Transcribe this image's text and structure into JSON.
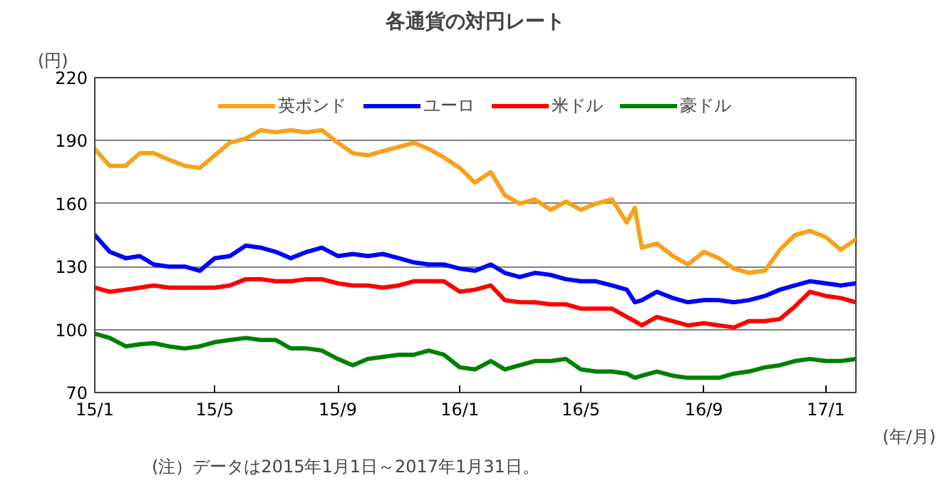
{
  "chart_data": {
    "type": "line",
    "title": "各通貨の対円レート",
    "ylabel": "(円)",
    "xlabel": "(年/月)",
    "annotations": [
      "(注）データは2015年1月1日～2017年1月31日。"
    ],
    "x": [
      "2015-01-01",
      "2015-01-16",
      "2015-02-01",
      "2015-02-15",
      "2015-03-01",
      "2015-03-16",
      "2015-04-01",
      "2015-04-16",
      "2015-05-01",
      "2015-05-16",
      "2015-06-01",
      "2015-06-16",
      "2015-07-01",
      "2015-07-16",
      "2015-08-01",
      "2015-08-16",
      "2015-09-01",
      "2015-09-16",
      "2015-10-01",
      "2015-10-16",
      "2015-11-01",
      "2015-11-16",
      "2015-12-01",
      "2015-12-16",
      "2016-01-01",
      "2016-01-16",
      "2016-02-01",
      "2016-02-15",
      "2016-03-01",
      "2016-03-16",
      "2016-04-01",
      "2016-04-16",
      "2016-05-01",
      "2016-05-16",
      "2016-06-01",
      "2016-06-16",
      "2016-06-24",
      "2016-07-01",
      "2016-07-16",
      "2016-08-01",
      "2016-08-16",
      "2016-09-01",
      "2016-09-16",
      "2016-10-01",
      "2016-10-16",
      "2016-11-01",
      "2016-11-16",
      "2016-12-01",
      "2016-12-16",
      "2017-01-01",
      "2017-01-16",
      "2017-01-31"
    ],
    "series": [
      {
        "name": "英ポンド",
        "color": "#f7a21b",
        "values": [
          186,
          178,
          178,
          184,
          184,
          181,
          178,
          177,
          183,
          189,
          191,
          195,
          194,
          195,
          194,
          195,
          189,
          184,
          183,
          185,
          187,
          189,
          186,
          182,
          177,
          170,
          175,
          164,
          160,
          162,
          157,
          161,
          157,
          160,
          162,
          151,
          158,
          139,
          141,
          135,
          131,
          137,
          134,
          129,
          127,
          128,
          138,
          145,
          147,
          144,
          138,
          143
        ]
      },
      {
        "name": "ユーロ",
        "color": "#0000ff",
        "values": [
          145,
          137,
          134,
          135,
          131,
          130,
          130,
          128,
          134,
          135,
          140,
          139,
          137,
          134,
          137,
          139,
          135,
          136,
          135,
          136,
          134,
          132,
          131,
          131,
          129,
          128,
          131,
          127,
          125,
          127,
          126,
          124,
          123,
          123,
          121,
          119,
          113,
          114,
          118,
          115,
          113,
          114,
          114,
          113,
          114,
          116,
          119,
          121,
          123,
          122,
          121,
          122
        ]
      },
      {
        "name": "米ドル",
        "color": "#ff0000",
        "values": [
          120,
          118,
          119,
          120,
          121,
          120,
          120,
          120,
          120,
          121,
          124,
          124,
          123,
          123,
          124,
          124,
          122,
          121,
          121,
          120,
          121,
          123,
          123,
          123,
          118,
          119,
          121,
          114,
          113,
          113,
          112,
          112,
          110,
          110,
          110,
          106,
          104,
          102,
          106,
          104,
          102,
          103,
          102,
          101,
          104,
          104,
          105,
          111,
          118,
          116,
          115,
          113
        ]
      },
      {
        "name": "豪ドル",
        "color": "#008000",
        "values": [
          98,
          96,
          92,
          93,
          93.5,
          92,
          91,
          92,
          94,
          95,
          96,
          95,
          95,
          91,
          91,
          90,
          86,
          83,
          86,
          87,
          88,
          88,
          90,
          88,
          82,
          81,
          85,
          81,
          83,
          85,
          85,
          86,
          81,
          80,
          80,
          79,
          77,
          78,
          80,
          78,
          77,
          77,
          77,
          79,
          80,
          82,
          83,
          85,
          86,
          85,
          85,
          86
        ]
      }
    ],
    "xlim": [
      "2015-01-01",
      "2017-01-31"
    ],
    "xticks": [
      {
        "value": "2015-01-01",
        "label": "15/1"
      },
      {
        "value": "2015-05-01",
        "label": "15/5"
      },
      {
        "value": "2015-09-01",
        "label": "15/9"
      },
      {
        "value": "2016-01-01",
        "label": "16/1"
      },
      {
        "value": "2016-05-01",
        "label": "16/5"
      },
      {
        "value": "2016-09-01",
        "label": "16/9"
      },
      {
        "value": "2017-01-01",
        "label": "17/1"
      }
    ],
    "ylim": [
      70,
      220
    ],
    "yticks": [
      70,
      100,
      130,
      160,
      190,
      220
    ],
    "grid": "y",
    "legend": "top",
    "line_style": "solid"
  }
}
